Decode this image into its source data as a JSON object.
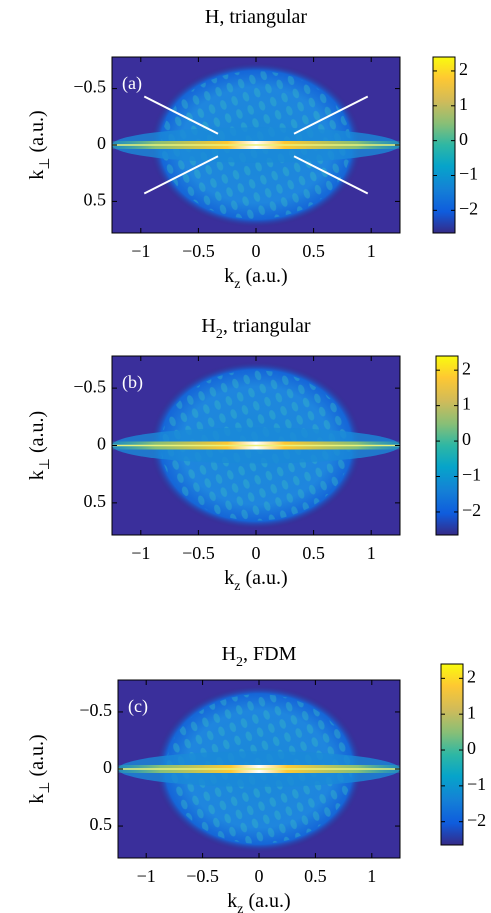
{
  "chart_data": [
    {
      "type": "heatmap",
      "title": "H",
      "title_rest": ", triangular",
      "panel_label": "(a)",
      "xlabel": "k",
      "xlabel_sub": "z",
      "xlabel_rest": " (a.u.)",
      "ylabel": "k",
      "ylabel_sub": "⊥",
      "ylabel_rest": " (a.u.)",
      "xlim": [
        -1.25,
        1.25
      ],
      "xticks": [
        {
          "value": -1,
          "label": "−1"
        },
        {
          "value": -0.5,
          "label": "−0.5"
        },
        0,
        0.5,
        1
      ],
      "ylim": [
        -0.78,
        0.78
      ],
      "yticks": [
        {
          "value": -0.5,
          "label": "−0.5"
        },
        0,
        0.5
      ],
      "clim": [
        -2.65,
        2.4
      ],
      "cticks": [
        2,
        1,
        0,
        {
          "value": -1,
          "label": "−1"
        },
        {
          "value": -2,
          "label": "−2"
        }
      ]
    },
    {
      "type": "heatmap",
      "title": "H",
      "title_sub": "2",
      "title_rest": ", triangular",
      "panel_label": "(b)",
      "xlabel": "k",
      "xlabel_sub": "z",
      "xlabel_rest": " (a.u.)",
      "ylabel": "k",
      "ylabel_sub": "⊥",
      "ylabel_rest": " (a.u.)",
      "xlim": [
        -1.25,
        1.25
      ],
      "xticks": [
        {
          "value": -1,
          "label": "−1"
        },
        {
          "value": -0.5,
          "label": "−0.5"
        },
        0,
        0.5,
        1
      ],
      "ylim": [
        -0.78,
        0.78
      ],
      "yticks": [
        {
          "value": -0.5,
          "label": "−0.5"
        },
        0,
        0.5
      ],
      "clim": [
        -2.65,
        2.4
      ],
      "cticks": [
        2,
        1,
        0,
        {
          "value": -1,
          "label": "−1"
        },
        {
          "value": -2,
          "label": "−2"
        }
      ]
    },
    {
      "type": "heatmap",
      "title": "H",
      "title_sub": "2",
      "title_rest": ", FDM",
      "panel_label": "(c)",
      "xlabel": "k",
      "xlabel_sub": "z",
      "xlabel_rest": " (a.u.)",
      "ylabel": "k",
      "ylabel_sub": "⊥",
      "ylabel_rest": " (a.u.)",
      "xlim": [
        -1.25,
        1.25
      ],
      "xticks": [
        {
          "value": -1,
          "label": "−1"
        },
        {
          "value": -0.5,
          "label": "−0.5"
        },
        0,
        0.5,
        1
      ],
      "ylim": [
        -0.78,
        0.78
      ],
      "yticks": [
        {
          "value": -0.5,
          "label": "−0.5"
        },
        0,
        0.5
      ],
      "clim": [
        -2.65,
        2.4
      ],
      "cticks": [
        2,
        1,
        0,
        {
          "value": -1,
          "label": "−1"
        },
        {
          "value": -2,
          "label": "−2"
        }
      ]
    }
  ]
}
